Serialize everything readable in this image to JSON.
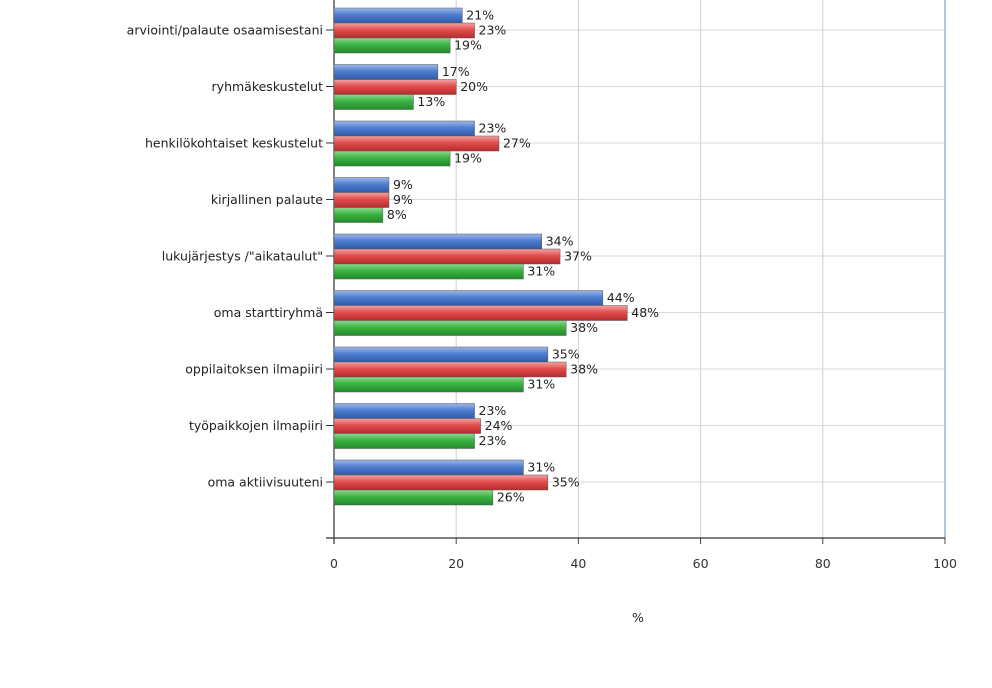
{
  "chart_data": {
    "type": "bar",
    "orientation": "horizontal",
    "title": "",
    "xlabel": "%",
    "ylabel": "",
    "xlim": [
      0,
      100
    ],
    "x_ticks": [
      "0",
      "20",
      "40",
      "60",
      "80",
      "100"
    ],
    "grid": true,
    "legend": "none",
    "categories": [
      "arviointi/palaute osaamisestani",
      "ryhmäkeskustelut",
      "henkilökohtaiset keskustelut",
      "kirjallinen palaute",
      "lukujärjestys /\"aikataulut\"",
      "oma starttiryhmä",
      "oppilaitoksen ilmapiiri",
      "työpaikkojen ilmapiiri",
      "oma aktiivisuuteni"
    ],
    "series": [
      {
        "color": "#4a78cc",
        "values": [
          21,
          17,
          23,
          9,
          34,
          44,
          35,
          23,
          31
        ]
      },
      {
        "color": "#e04a4a",
        "values": [
          23,
          20,
          27,
          9,
          37,
          48,
          38,
          24,
          35
        ]
      },
      {
        "color": "#36ad3c",
        "values": [
          19,
          13,
          19,
          8,
          31,
          38,
          31,
          23,
          26
        ]
      }
    ],
    "value_suffix": "%"
  }
}
